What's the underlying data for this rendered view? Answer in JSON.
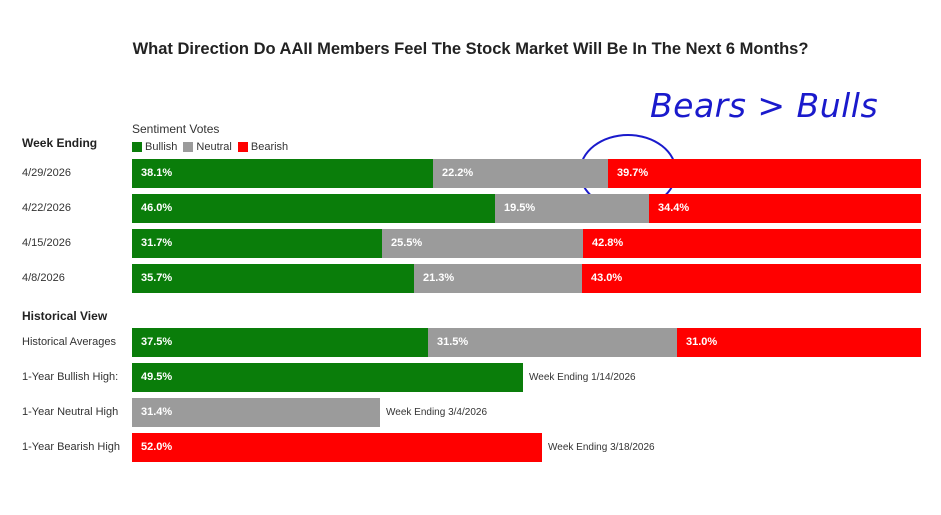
{
  "chart_data": {
    "type": "bar",
    "orientation": "horizontal",
    "stacked": true,
    "title": "What Direction Do AAII Members Feel The Stock Market Will Be In The Next 6 Months?",
    "annotation": "Bears > Bulls",
    "legend_title": "Sentiment Votes",
    "legend_placement": "top-left",
    "section_week": "Week Ending",
    "section_hist": "Historical View",
    "series_meta": [
      {
        "name": "Bullish",
        "color": "#0a7d0a"
      },
      {
        "name": "Neutral",
        "color": "#9b9b9b"
      },
      {
        "name": "Bearish",
        "color": "#ff0000"
      }
    ],
    "weekly": [
      {
        "label": "4/29/2026",
        "values": [
          38.1,
          22.2,
          39.7
        ]
      },
      {
        "label": "4/22/2026",
        "values": [
          46.0,
          19.5,
          34.4
        ]
      },
      {
        "label": "4/15/2026",
        "values": [
          31.7,
          25.5,
          42.8
        ]
      },
      {
        "label": "4/8/2026",
        "values": [
          35.7,
          21.3,
          43.0
        ]
      }
    ],
    "historical_average": {
      "label": "Historical Averages",
      "values": [
        37.5,
        31.5,
        31.0
      ]
    },
    "highs": [
      {
        "label": "1-Year Bullish High:",
        "series": "Bullish",
        "value": 49.5,
        "note": "Week Ending 1/14/2026"
      },
      {
        "label": "1-Year Neutral High",
        "series": "Neutral",
        "value": 31.4,
        "note": "Week Ending 3/4/2026"
      },
      {
        "label": "1-Year Bearish High",
        "series": "Bearish",
        "value": 52.0,
        "note": "Week Ending 3/18/2026"
      }
    ]
  }
}
